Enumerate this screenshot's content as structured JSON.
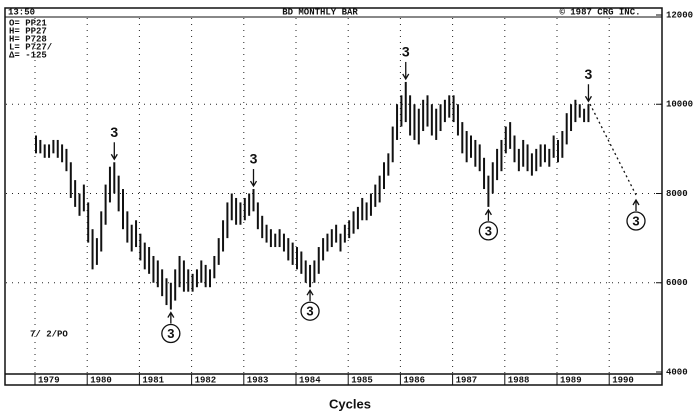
{
  "chart_data": {
    "type": "ohlc",
    "title": "BD MONTHLY BAR",
    "copyright": "© 1987 CRG INC.",
    "time": "13:50",
    "quote_lines": [
      "O= PP21",
      "H= PP27",
      "H= P728",
      "L= P727/",
      "Δ= -125"
    ],
    "date_note": "7/ 2/PO",
    "caption": "Cycles",
    "color": "#111111",
    "grid": true,
    "ylim": [
      4000,
      12000
    ],
    "yticks": [
      4000,
      6000,
      8000,
      10000,
      12000
    ],
    "categories": [
      "1979",
      null,
      null,
      null,
      null,
      null,
      null,
      null,
      null,
      null,
      null,
      null,
      "1980",
      null,
      null,
      null,
      null,
      null,
      null,
      null,
      null,
      null,
      null,
      null,
      "1981",
      null,
      null,
      null,
      null,
      null,
      null,
      null,
      null,
      null,
      null,
      null,
      "1982",
      null,
      null,
      null,
      null,
      null,
      null,
      null,
      null,
      null,
      null,
      null,
      "1983",
      null,
      null,
      null,
      null,
      null,
      null,
      null,
      null,
      null,
      null,
      null,
      "1984",
      null,
      null,
      null,
      null,
      null,
      null,
      null,
      null,
      null,
      null,
      null,
      "1985",
      null,
      null,
      null,
      null,
      null,
      null,
      null,
      null,
      null,
      null,
      null,
      "1986",
      null,
      null,
      null,
      null,
      null,
      null,
      null,
      null,
      null,
      null,
      null,
      "1987",
      null,
      null,
      null,
      null,
      null,
      null,
      null,
      null,
      null,
      null,
      null,
      "1988",
      null,
      null,
      null,
      null,
      null,
      null,
      null,
      null,
      null,
      null,
      null,
      "1989",
      null,
      null,
      null,
      null,
      null,
      null,
      null,
      null,
      null,
      null,
      null,
      "1990"
    ],
    "high": [
      9300,
      9200,
      9100,
      9100,
      9200,
      9200,
      9100,
      9000,
      8700,
      8300,
      8000,
      8200,
      7800,
      7200,
      7000,
      7600,
      8200,
      8600,
      8700,
      8400,
      8100,
      7600,
      7300,
      7400,
      7100,
      6900,
      6800,
      6600,
      6500,
      6300,
      6100,
      6000,
      6300,
      6600,
      6500,
      6300,
      6200,
      6300,
      6500,
      6400,
      6300,
      6600,
      7000,
      7400,
      7800,
      8000,
      7900,
      7800,
      7900,
      8000,
      8100,
      7800,
      7500,
      7300,
      7200,
      7100,
      7200,
      7100,
      7000,
      6900,
      6800,
      6700,
      6500,
      6400,
      6500,
      6800,
      7000,
      7100,
      7200,
      7300,
      7100,
      7300,
      7400,
      7600,
      7700,
      7900,
      7800,
      8000,
      8200,
      8400,
      8700,
      8900,
      9500,
      10000,
      10200,
      10500,
      10200,
      10000,
      9900,
      10100,
      10200,
      10000,
      9900,
      10000,
      10100,
      10200,
      10200,
      10000,
      9600,
      9400,
      9300,
      9200,
      9100,
      8800,
      8400,
      8700,
      9000,
      9200,
      9500,
      9600,
      9300,
      9000,
      9200,
      9100,
      8900,
      9000,
      9100,
      9100,
      9000,
      9300,
      9200,
      9400,
      9800,
      10000,
      10100,
      10000,
      9900,
      10000,
      null,
      null,
      null,
      null,
      null
    ],
    "low": [
      8900,
      8900,
      8800,
      8800,
      8900,
      8800,
      8700,
      8500,
      7900,
      7700,
      7500,
      7600,
      6900,
      6300,
      6400,
      6700,
      7300,
      7800,
      8000,
      7600,
      7200,
      6900,
      6700,
      6800,
      6500,
      6300,
      6200,
      6000,
      5900,
      5700,
      5500,
      5400,
      5600,
      5900,
      5800,
      5800,
      5800,
      5900,
      6000,
      5900,
      5900,
      6100,
      6400,
      6700,
      7000,
      7400,
      7300,
      7300,
      7400,
      7500,
      7600,
      7200,
      7000,
      6900,
      6800,
      6800,
      6800,
      6700,
      6500,
      6400,
      6300,
      6200,
      6000,
      5900,
      6000,
      6200,
      6500,
      6700,
      6800,
      6900,
      6700,
      6900,
      7000,
      7100,
      7200,
      7400,
      7400,
      7500,
      7700,
      7800,
      8100,
      8400,
      8700,
      9200,
      9500,
      9600,
      9300,
      9200,
      9100,
      9400,
      9500,
      9300,
      9200,
      9400,
      9600,
      9700,
      9600,
      9300,
      8900,
      8700,
      8800,
      8600,
      8500,
      8100,
      7700,
      8000,
      8300,
      8500,
      8900,
      9000,
      8700,
      8500,
      8600,
      8500,
      8400,
      8500,
      8600,
      8700,
      8600,
      8800,
      8700,
      8800,
      9100,
      9400,
      9600,
      9700,
      9600,
      9600,
      null,
      null,
      null,
      null,
      null
    ],
    "annotations": [
      "3",
      "3",
      "3",
      "3",
      "3",
      "3",
      "3",
      "3"
    ]
  }
}
